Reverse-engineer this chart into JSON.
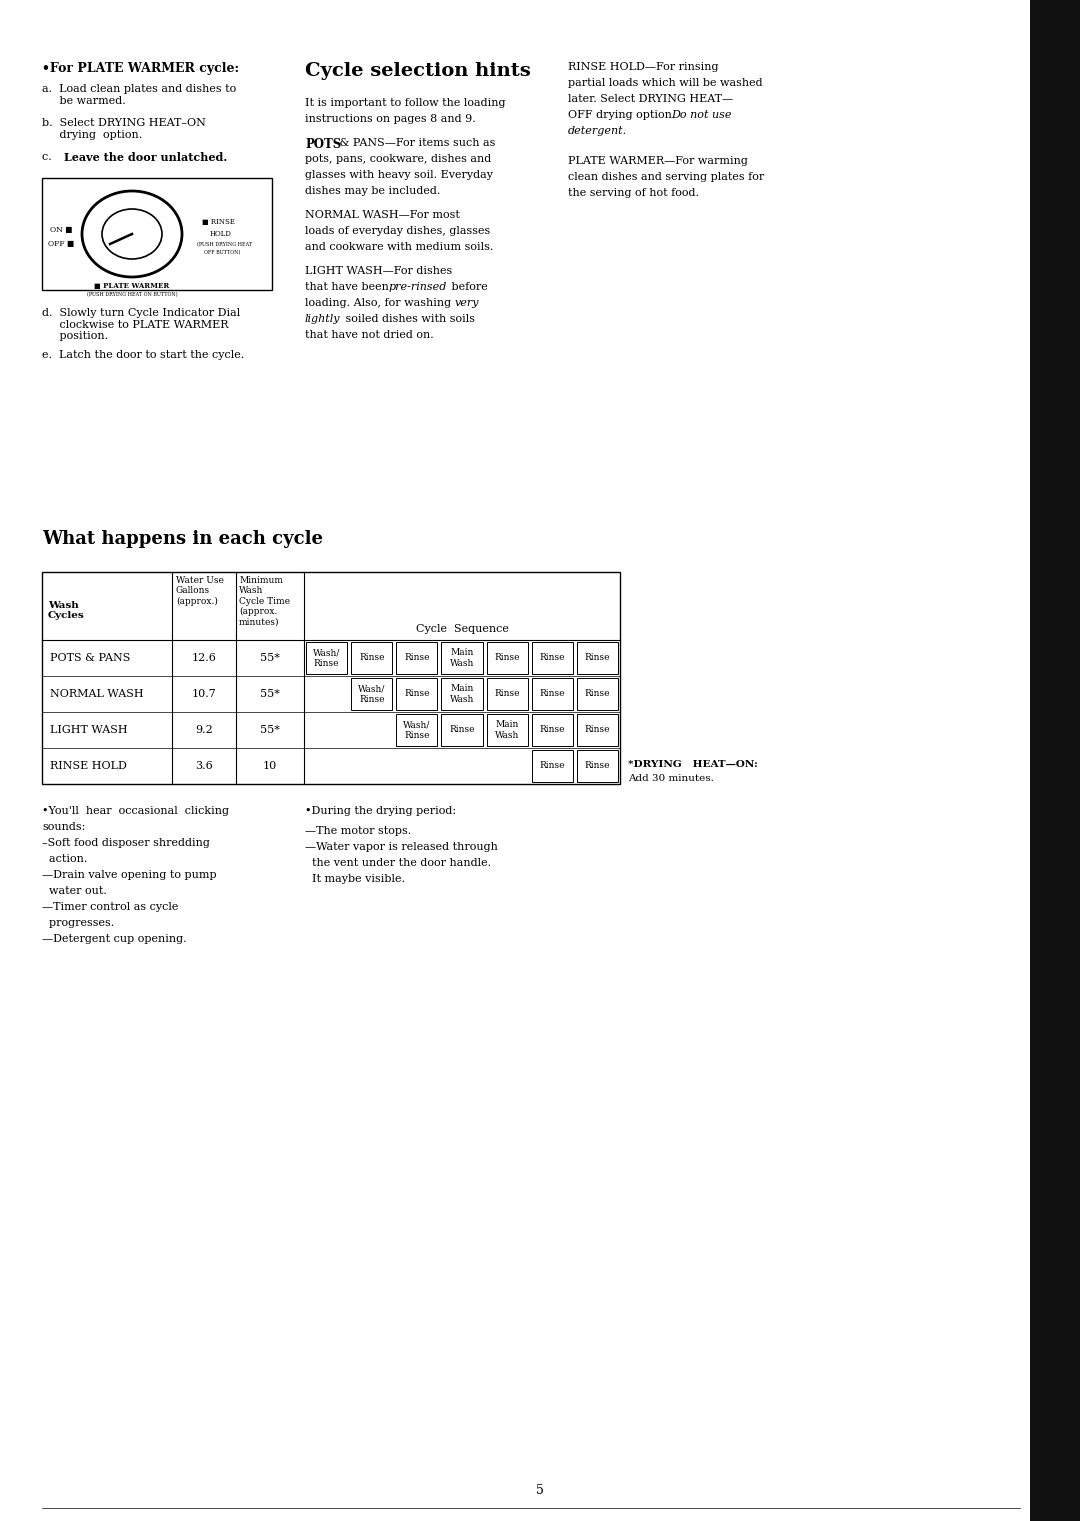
{
  "bg_color": "#ffffff",
  "page_width": 10.8,
  "page_height": 15.21,
  "sidebar_color": "#111111",
  "sec1_title": "•For PLATE WARMER cycle:",
  "sec1_a": "a.  Load clean plates and dishes to\n     be warmed.",
  "sec1_b": "b.  Select DRYING HEAT–ON\n     drying  option.",
  "sec1_c_plain": "c.  ",
  "sec1_c_bold": "Leave the door unlatched.",
  "sec1_d": "d.  Slowly turn Cycle Indicator Dial\n     clockwise to PLATE WARMER\n     position.",
  "sec1_e": "e.  Latch the door to start the cycle.",
  "sec2_title": "Cycle selection hints",
  "sec2_p1_line1": "It is important to follow the loading",
  "sec2_p1_line2": "instructions on pages 8 and 9.",
  "sec2_pots_bold": "POTS",
  "sec2_pots_rest_line1": " & PANS—For items such as",
  "sec2_pots_line2": "pots, pans, cookware, dishes and",
  "sec2_pots_line3": "glasses with heavy soil. Everyday",
  "sec2_pots_line4": "dishes may be included.",
  "sec2_normal_line1": "NORMAL WASH—For most",
  "sec2_normal_line2": "loads of everyday dishes, glasses",
  "sec2_normal_line3": "and cookware with medium soils.",
  "sec2_light_line1": "LIGHT WASH—For dishes",
  "sec2_light_line2a": "that have been ",
  "sec2_light_line2b": "pre-rinsed",
  "sec2_light_line2c": " before",
  "sec2_light_line3a": "loading. Also, for washing ",
  "sec2_light_line3b": "very",
  "sec2_light_line4a": "lightly",
  "sec2_light_line4b": " soiled dishes with soils",
  "sec2_light_line5": "that have not dried on.",
  "sec3_rinse_line1": "RINSE HOLD—For rinsing",
  "sec3_rinse_line2": "partial loads which will be washed",
  "sec3_rinse_line3": "later. Select DRYING HEAT—",
  "sec3_rinse_line4a": "OFF drying option. ",
  "sec3_rinse_line4b": "Do not use",
  "sec3_rinse_line5": "detergent.",
  "sec3_plate_line1": "PLATE WARMER—For warming",
  "sec3_plate_line2": "clean dishes and serving plates for",
  "sec3_plate_line3": "the serving of hot food.",
  "table_title": "What happens in each cycle",
  "row_labels": [
    "POTS & PANS",
    "NORMAL WASH",
    "LIGHT WASH",
    "RINSE HOLD"
  ],
  "row_waters": [
    "12.6",
    "10.7",
    "9.2",
    "3.6"
  ],
  "row_times": [
    "55*",
    "55*",
    "55*",
    "10"
  ],
  "row_offsets": [
    0,
    1,
    2,
    5
  ],
  "row_boxes": [
    [
      "Wash/\nRinse",
      "Rinse",
      "Rinse",
      "Main\nWash",
      "Rinse",
      "Rinse",
      "Rinse"
    ],
    [
      "Wash/\nRinse",
      "Rinse",
      "Main\nWash",
      "Rinse",
      "Rinse",
      "Rinse"
    ],
    [
      "Wash/\nRinse",
      "Rinse",
      "Main\nWash",
      "Rinse",
      "Rinse"
    ],
    [
      "Rinse",
      "Rinse"
    ]
  ],
  "drying_note_line1": "*DRYING   HEAT—ON:",
  "drying_note_line2": "Add 30 minutes.",
  "bc1_line1": "•You'll  hear  occasional  clicking",
  "bc1_line2": "sounds:",
  "bc1_line3": "–Soft food disposer shredding",
  "bc1_line4": "  action.",
  "bc1_line5": "—Drain valve opening to pump",
  "bc1_line6": "  water out.",
  "bc1_line7": "—Timer control as cycle",
  "bc1_line8": "  progresses.",
  "bc1_line9": "—Detergent cup opening.",
  "bc2_line1": "•During the drying period:",
  "bc2_line2": "—The motor stops.",
  "bc2_line3": "—Water vapor is released through",
  "bc2_line4": "  the vent under the door handle.",
  "bc2_line5": "  It maybe visible.",
  "page_number": "5"
}
